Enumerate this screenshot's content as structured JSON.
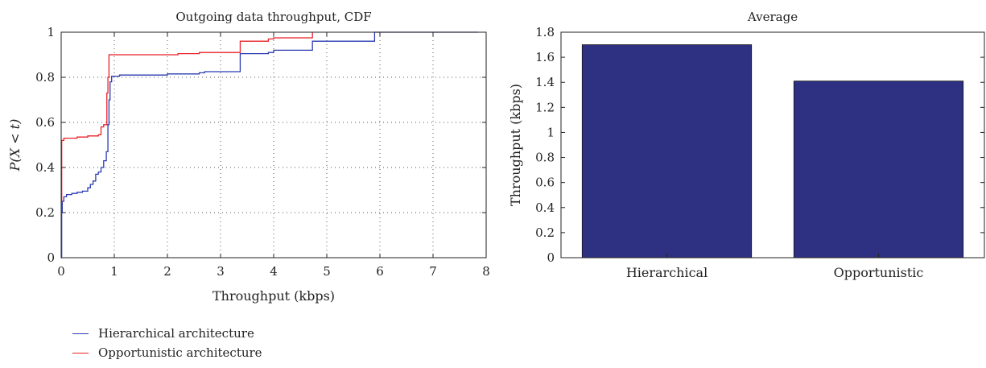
{
  "colors": {
    "hierarchical": "#2b3bb0",
    "opportunistic": "#e8232a",
    "bar_fill": "#2e3082"
  },
  "chart_data": [
    {
      "type": "line",
      "title": "Outgoing data throughput, CDF",
      "xlabel": "Throughput (kbps)",
      "ylabel": "P(X < t)",
      "xlim": [
        0,
        8
      ],
      "ylim": [
        0,
        1
      ],
      "xticks": [
        "0",
        "1",
        "2",
        "3",
        "4",
        "5",
        "6",
        "7",
        "8"
      ],
      "yticks": [
        "0",
        "0.2",
        "0.4",
        "0.6",
        "0.8",
        "1"
      ],
      "grid": true,
      "series": [
        {
          "name": "Hierarchical architecture",
          "points": [
            [
              0,
              0
            ],
            [
              0.01,
              0.2
            ],
            [
              0.02,
              0.25
            ],
            [
              0.05,
              0.27
            ],
            [
              0.1,
              0.28
            ],
            [
              0.2,
              0.285
            ],
            [
              0.3,
              0.29
            ],
            [
              0.4,
              0.295
            ],
            [
              0.5,
              0.31
            ],
            [
              0.55,
              0.325
            ],
            [
              0.6,
              0.34
            ],
            [
              0.65,
              0.37
            ],
            [
              0.7,
              0.38
            ],
            [
              0.75,
              0.4
            ],
            [
              0.8,
              0.43
            ],
            [
              0.85,
              0.47
            ],
            [
              0.88,
              0.59
            ],
            [
              0.9,
              0.7
            ],
            [
              0.92,
              0.78
            ],
            [
              0.95,
              0.805
            ],
            [
              1.1,
              0.81
            ],
            [
              1.5,
              0.81
            ],
            [
              2.0,
              0.815
            ],
            [
              2.2,
              0.815
            ],
            [
              2.6,
              0.82
            ],
            [
              2.7,
              0.825
            ],
            [
              3.35,
              0.825
            ],
            [
              3.37,
              0.905
            ],
            [
              3.9,
              0.91
            ],
            [
              4.0,
              0.92
            ],
            [
              4.72,
              0.92
            ],
            [
              4.73,
              0.96
            ],
            [
              5.88,
              0.96
            ],
            [
              5.9,
              1.0
            ],
            [
              7.85,
              1.0
            ]
          ]
        },
        {
          "name": "Opportunistic architecture",
          "points": [
            [
              0,
              0
            ],
            [
              0.005,
              0.25
            ],
            [
              0.01,
              0.52
            ],
            [
              0.05,
              0.53
            ],
            [
              0.15,
              0.53
            ],
            [
              0.3,
              0.535
            ],
            [
              0.5,
              0.54
            ],
            [
              0.7,
              0.545
            ],
            [
              0.75,
              0.58
            ],
            [
              0.8,
              0.59
            ],
            [
              0.85,
              0.59
            ],
            [
              0.86,
              0.73
            ],
            [
              0.88,
              0.8
            ],
            [
              0.9,
              0.9
            ],
            [
              1.0,
              0.9
            ],
            [
              1.5,
              0.9
            ],
            [
              2.0,
              0.9
            ],
            [
              2.2,
              0.905
            ],
            [
              2.6,
              0.91
            ],
            [
              3.0,
              0.91
            ],
            [
              3.35,
              0.91
            ],
            [
              3.37,
              0.96
            ],
            [
              3.9,
              0.97
            ],
            [
              4.0,
              0.975
            ],
            [
              4.72,
              0.975
            ],
            [
              4.73,
              1.0
            ]
          ]
        }
      ],
      "legend": [
        "Hierarchical architecture",
        "Opportunistic architecture"
      ],
      "legend_placement": "bottom-left"
    },
    {
      "type": "bar",
      "title": "Average",
      "categories": [
        "Hierarchical",
        "Opportunistic"
      ],
      "values": [
        1.7,
        1.41
      ],
      "xlabel": "",
      "ylabel": "Throughput (kbps)",
      "ylim": [
        0,
        1.8
      ],
      "yticks": [
        "0",
        "0.2",
        "0.4",
        "0.6",
        "0.8",
        "1",
        "1.2",
        "1.4",
        "1.6",
        "1.8"
      ]
    }
  ]
}
